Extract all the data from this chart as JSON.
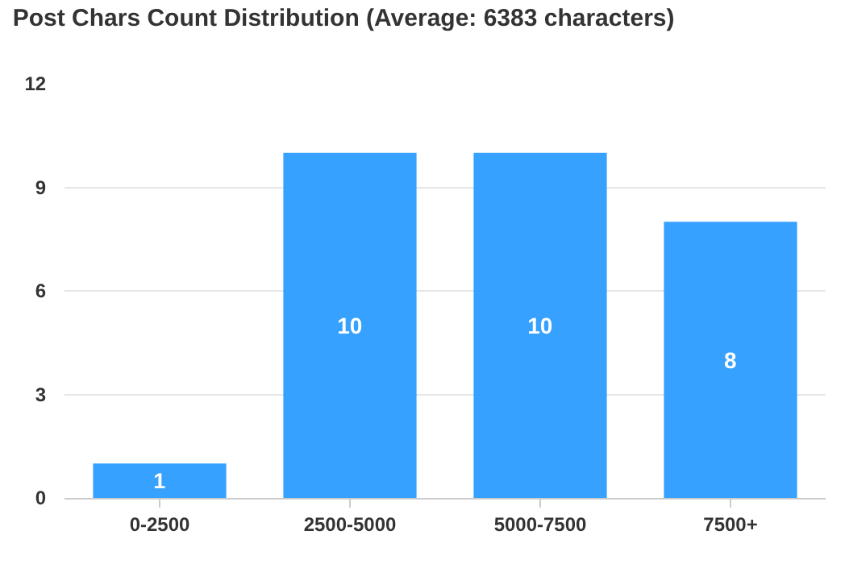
{
  "chart_data": {
    "type": "bar",
    "title": "Post Chars Count Distribution (Average: 6383 characters)",
    "categories": [
      "0-2500",
      "2500-5000",
      "5000-7500",
      "7500+"
    ],
    "values": [
      1,
      10,
      10,
      8
    ],
    "color": "#2b9cff",
    "ylim": [
      0,
      12
    ],
    "yticks": [
      0,
      3,
      6,
      9,
      12
    ],
    "grid": "y",
    "data_labels": true
  }
}
